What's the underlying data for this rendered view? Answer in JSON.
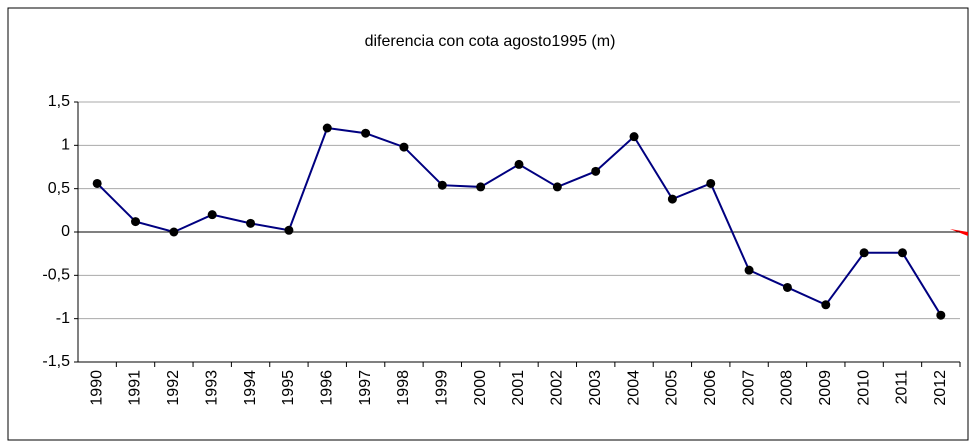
{
  "chart_data": {
    "type": "line",
    "title": "diferencia  con cota agosto1995 (m)",
    "categories": [
      "1990",
      "1991",
      "1992",
      "1993",
      "1994",
      "1995",
      "1996",
      "1997",
      "1998",
      "1999",
      "2000",
      "2001",
      "2002",
      "2003",
      "2004",
      "2005",
      "2006",
      "2007",
      "2008",
      "2009",
      "2010",
      "2011",
      "2012"
    ],
    "series": [
      {
        "name": "diferencia",
        "color": "#000080",
        "values": [
          0.56,
          0.12,
          0.0,
          0.2,
          0.1,
          0.02,
          1.2,
          1.14,
          0.98,
          0.54,
          0.52,
          0.78,
          0.52,
          0.7,
          1.1,
          0.38,
          0.56,
          -0.44,
          -0.64,
          -0.84,
          -0.24,
          -0.24,
          -0.96
        ]
      }
    ],
    "ylim": [
      -1.5,
      1.5
    ],
    "yticks": [
      {
        "value": -1.5,
        "label": "-1,5"
      },
      -1,
      {
        "value": -0.5,
        "label": "-0,5"
      },
      0,
      {
        "value": 0.5,
        "label": "0,5"
      },
      1,
      {
        "value": 1.5,
        "label": "1,5"
      }
    ],
    "grid": true
  }
}
